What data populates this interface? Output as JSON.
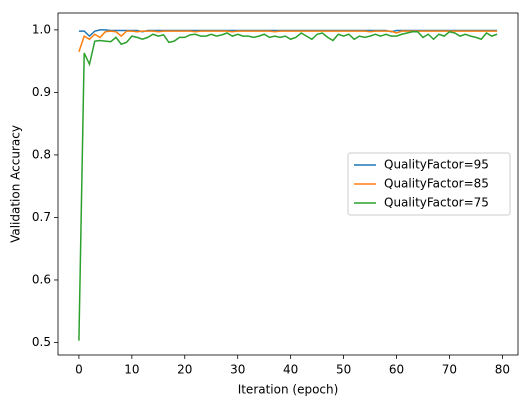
{
  "chart_data": {
    "type": "line",
    "xlabel": "Iteration (epoch)",
    "ylabel": "Validation Accuracy",
    "x": [
      0,
      1,
      2,
      3,
      4,
      5,
      6,
      7,
      8,
      9,
      10,
      11,
      12,
      13,
      14,
      15,
      16,
      17,
      18,
      19,
      20,
      21,
      22,
      23,
      24,
      25,
      26,
      27,
      28,
      29,
      30,
      31,
      32,
      33,
      34,
      35,
      36,
      37,
      38,
      39,
      40,
      41,
      42,
      43,
      44,
      45,
      46,
      47,
      48,
      49,
      50,
      51,
      52,
      53,
      54,
      55,
      56,
      57,
      58,
      59,
      60,
      61,
      62,
      63,
      64,
      65,
      66,
      67,
      68,
      69,
      70,
      71,
      72,
      73,
      74,
      75,
      76,
      77,
      78,
      79
    ],
    "series": [
      {
        "name": "QualityFactor=95",
        "color": "#1f77b4",
        "values": [
          0.998,
          0.998,
          0.99,
          0.998,
          1.0,
          1.0,
          0.999,
          0.999,
          0.999,
          0.999,
          0.999,
          0.999,
          0.997,
          0.999,
          0.999,
          0.999,
          0.999,
          0.999,
          0.999,
          0.999,
          0.999,
          0.999,
          0.999,
          0.999,
          0.999,
          0.999,
          0.999,
          0.999,
          0.999,
          0.999,
          0.999,
          0.999,
          0.999,
          0.999,
          0.999,
          0.999,
          0.999,
          0.999,
          0.999,
          0.999,
          0.999,
          0.999,
          0.999,
          0.999,
          0.999,
          0.999,
          0.999,
          0.999,
          0.999,
          0.999,
          0.999,
          0.999,
          0.999,
          0.999,
          0.999,
          0.999,
          0.999,
          0.999,
          0.999,
          0.997,
          0.999,
          0.999,
          0.999,
          0.999,
          0.999,
          0.999,
          0.999,
          0.999,
          0.999,
          0.999,
          0.999,
          0.999,
          0.999,
          0.999,
          0.999,
          0.999,
          0.999,
          0.999,
          0.999,
          0.999
        ]
      },
      {
        "name": "QualityFactor=85",
        "color": "#ff7f0e",
        "values": [
          0.965,
          0.99,
          0.985,
          0.993,
          0.988,
          0.997,
          0.998,
          0.997,
          0.99,
          0.998,
          0.998,
          0.997,
          0.998,
          0.998,
          0.998,
          0.997,
          0.998,
          0.998,
          0.998,
          0.998,
          0.998,
          0.998,
          0.997,
          0.998,
          0.998,
          0.998,
          0.998,
          0.998,
          0.998,
          0.997,
          0.998,
          0.998,
          0.998,
          0.998,
          0.998,
          0.998,
          0.998,
          0.997,
          0.998,
          0.998,
          0.998,
          0.998,
          0.998,
          0.998,
          0.998,
          0.998,
          0.998,
          0.998,
          0.998,
          0.998,
          0.998,
          0.998,
          0.998,
          0.998,
          0.998,
          0.997,
          0.998,
          0.998,
          0.998,
          0.998,
          0.995,
          0.998,
          0.998,
          0.998,
          0.998,
          0.998,
          0.998,
          0.998,
          0.998,
          0.998,
          0.998,
          0.998,
          0.998,
          0.998,
          0.998,
          0.998,
          0.998,
          0.998,
          0.998,
          0.998
        ]
      },
      {
        "name": "QualityFactor=75",
        "color": "#2ca02c",
        "values": [
          0.503,
          0.963,
          0.945,
          0.982,
          0.983,
          0.982,
          0.981,
          0.988,
          0.977,
          0.98,
          0.99,
          0.988,
          0.985,
          0.988,
          0.993,
          0.99,
          0.992,
          0.98,
          0.982,
          0.988,
          0.988,
          0.992,
          0.993,
          0.99,
          0.99,
          0.993,
          0.99,
          0.992,
          0.995,
          0.99,
          0.993,
          0.99,
          0.99,
          0.988,
          0.99,
          0.993,
          0.988,
          0.99,
          0.988,
          0.99,
          0.985,
          0.988,
          0.995,
          0.99,
          0.985,
          0.993,
          0.995,
          0.988,
          0.983,
          0.993,
          0.99,
          0.993,
          0.985,
          0.99,
          0.988,
          0.99,
          0.993,
          0.99,
          0.993,
          0.99,
          0.99,
          0.993,
          0.995,
          0.997,
          0.997,
          0.988,
          0.993,
          0.985,
          0.993,
          0.99,
          0.997,
          0.995,
          0.99,
          0.993,
          0.99,
          0.988,
          0.985,
          0.995,
          0.99,
          0.993
        ]
      }
    ],
    "xlim": [
      -3.95,
      82.95
    ],
    "xticks": [
      0,
      10,
      20,
      30,
      40,
      50,
      60,
      70,
      80
    ],
    "ylim": [
      0.48,
      1.027
    ],
    "yticks": [
      {
        "value": 0.5,
        "label": "0.5"
      },
      0.6,
      0.7,
      0.8,
      0.9,
      {
        "value": 1,
        "label": "1.0"
      }
    ],
    "legend": "center right",
    "grid": false
  }
}
